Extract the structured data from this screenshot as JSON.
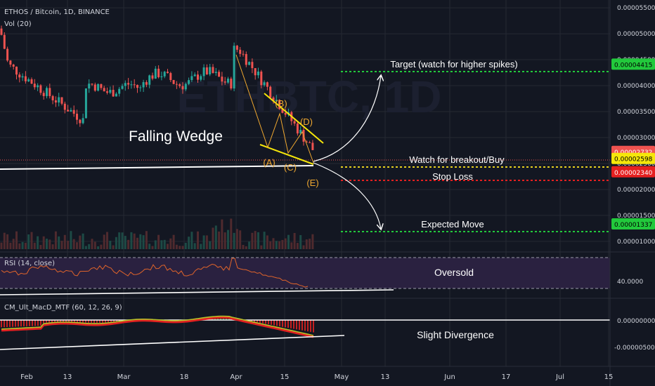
{
  "header": {
    "title": "ETHOS / Bitcoin, 1D, BINANCE",
    "volume_label": "Vol (20)"
  },
  "watermark": "ETHBTC, 1D",
  "colors": {
    "background": "#131722",
    "grid": "#242833",
    "up_candle": "#26a69a",
    "down_candle": "#ef5350",
    "wedge": "#f5e60a",
    "wave_labels": "#f0a830",
    "target_line": "#22c93c",
    "entry_line": "#e6d020",
    "stop_line": "#e52020",
    "rsi_band": "#2a2140",
    "rsi_line": "#e0642a",
    "macd_line": "#b5c22a",
    "macd_signal": "#e02020"
  },
  "chart_data": {
    "type": "candlestick",
    "price_axis": {
      "ticks": [
        "0.00005500",
        "0.00005000",
        "0.00004500",
        "0.00004000",
        "0.00003500",
        "0.00003000",
        "0.00002500",
        "0.00002000",
        "0.00001500",
        "0.00001000"
      ],
      "range": [
        8.5e-06,
        5.65e-05
      ]
    },
    "x_axis": {
      "ticks": [
        "Feb",
        "13",
        "Mar",
        "18",
        "Apr",
        "15",
        "May",
        "13",
        "Jun",
        "17",
        "Jul",
        "15"
      ]
    },
    "price_tags": [
      {
        "value": "0.00004415",
        "style": "target"
      },
      {
        "value": "0.00002732",
        "style": "current"
      },
      {
        "value": "0.00002598",
        "style": "entry"
      },
      {
        "value": "0.00002340",
        "style": "stop"
      },
      {
        "value": "0.00001337",
        "style": "target"
      }
    ],
    "annotations": {
      "pattern": "Falling Wedge",
      "target": "Target (watch for higher spikes)",
      "entry": "Watch for breakout/Buy",
      "stop": "Stop Loss",
      "expected": "Expected Move",
      "waves": [
        "(A)",
        "(B)",
        "(C)",
        "(D)",
        "(E)"
      ]
    },
    "rsi": {
      "label": "RSI (14, close)",
      "tick": "40.0000",
      "annotation": "Oversold"
    },
    "macd": {
      "label": "CM_Ult_MacD_MTF (60, 12, 26, 9)",
      "ticks": [
        "0.00000000",
        "-0.00000500"
      ],
      "annotation": "Slight Divergence"
    },
    "grid": true
  }
}
